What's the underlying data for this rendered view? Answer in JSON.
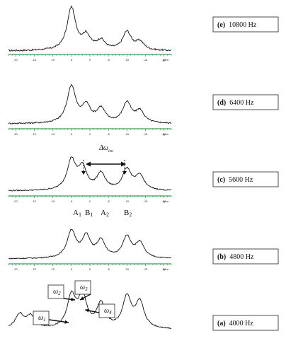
{
  "chart_data": [
    {
      "type": "line",
      "label": "(e)",
      "rate": "10800 Hz",
      "x": [
        20,
        15,
        10,
        5,
        0,
        -5,
        -10,
        -15,
        -20
      ],
      "tick_labels": [
        "20",
        "15",
        "10",
        "5",
        "0",
        "-5",
        "-10",
        "-15",
        "-20"
      ],
      "unit": "ppm",
      "peaks": [
        {
          "ppm": 5,
          "height": 1.0
        },
        {
          "ppm": 1,
          "height": 0.32
        },
        {
          "ppm": -3,
          "height": 0.22
        },
        {
          "ppm": -10,
          "height": 0.43
        },
        {
          "ppm": -13.5,
          "height": 0.19
        }
      ]
    },
    {
      "type": "line",
      "label": "(d)",
      "rate": "6400 Hz",
      "x": [
        20,
        15,
        10,
        5,
        0,
        -5,
        -10,
        -15,
        -20
      ],
      "tick_labels": [
        "20",
        "15",
        "10",
        "5",
        "0",
        "-5",
        "-10",
        "-15",
        "-20"
      ],
      "unit": "ppm",
      "peaks": [
        {
          "ppm": 5,
          "height": 1.0
        },
        {
          "ppm": 1,
          "height": 0.45
        },
        {
          "ppm": -3,
          "height": 0.38
        },
        {
          "ppm": -10,
          "height": 0.55
        },
        {
          "ppm": -13.5,
          "height": 0.32
        }
      ]
    },
    {
      "type": "line",
      "label": "(c)",
      "rate": "5600 Hz",
      "x": [
        20,
        15,
        10,
        5,
        0,
        -5,
        -10,
        -15,
        -20
      ],
      "tick_labels": [
        "20",
        "15",
        "10",
        "5",
        "0",
        "-5",
        "-10",
        "-15",
        "-20"
      ],
      "unit": "ppm",
      "annotation": "Δω",
      "annotation_sub": "iso",
      "peak_labels": [
        "A",
        "B",
        "A",
        "B"
      ],
      "peak_label_subs": [
        "1",
        "1",
        "2",
        "2"
      ],
      "peaks": [
        {
          "ppm": 5,
          "height": 1.0
        },
        {
          "ppm": 2,
          "height": 0.72
        },
        {
          "ppm": -3,
          "height": 0.55
        },
        {
          "ppm": -10,
          "height": 0.7
        },
        {
          "ppm": -13.5,
          "height": 0.48
        }
      ]
    },
    {
      "type": "line",
      "label": "(b)",
      "rate": "4800 Hz",
      "x": [
        20,
        15,
        10,
        5,
        0,
        -5,
        -10,
        -15,
        -20
      ],
      "tick_labels": [
        "20",
        "15",
        "10",
        "5",
        "0",
        "-5",
        "-10",
        "-15",
        "-20"
      ],
      "unit": "ppm",
      "peaks": [
        {
          "ppm": 5,
          "height": 1.0
        },
        {
          "ppm": 1,
          "height": 0.78
        },
        {
          "ppm": -3,
          "height": 0.62
        },
        {
          "ppm": -10,
          "height": 0.78
        },
        {
          "ppm": -13.5,
          "height": 0.55
        }
      ]
    },
    {
      "type": "line",
      "label": "(a)",
      "rate": "4000 Hz",
      "unit": "ppm",
      "annotations": [
        {
          "symbol": "ω",
          "sub": "1"
        },
        {
          "symbol": "ω",
          "sub": "2"
        },
        {
          "symbol": "ω",
          "sub": "3"
        },
        {
          "symbol": "ω",
          "sub": "4"
        }
      ],
      "peaks": [
        {
          "ppm": 19,
          "height": 0.45
        },
        {
          "ppm": 16,
          "height": 0.4
        },
        {
          "ppm": 5,
          "height": 1.0
        },
        {
          "ppm": 2,
          "height": 1.0
        },
        {
          "ppm": -3,
          "height": 0.78
        },
        {
          "ppm": -10,
          "height": 1.0
        },
        {
          "ppm": -13.5,
          "height": 0.82
        }
      ]
    }
  ]
}
